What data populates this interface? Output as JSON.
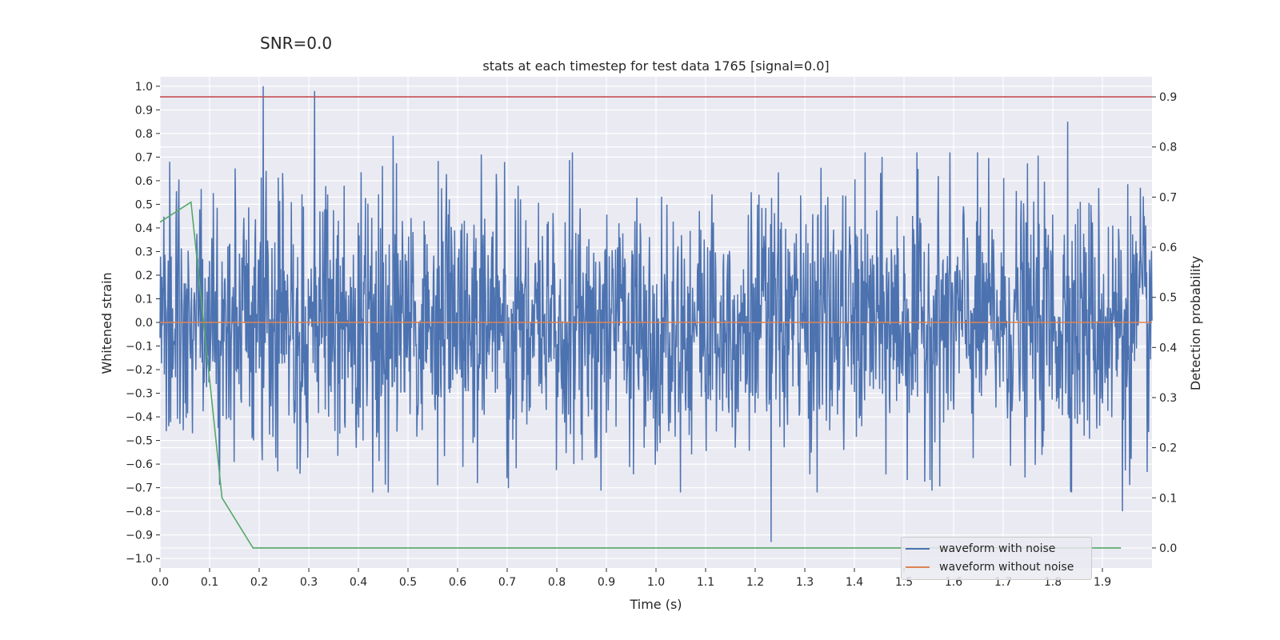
{
  "suptitle": "SNR=0.0",
  "chart_data": {
    "type": "line",
    "title": "stats at each timestep for test data 1765 [signal=0.0]",
    "xlabel": "Time (s)",
    "ylabel": "Whitened strain",
    "y2label": "Detection probability",
    "xlim": [
      0.0,
      2.0
    ],
    "ylim": [
      -1.04,
      1.04
    ],
    "y2lim": [
      -0.04,
      0.94
    ],
    "xticks": [
      "0.0",
      "0.1",
      "0.2",
      "0.3",
      "0.4",
      "0.5",
      "0.6",
      "0.7",
      "0.8",
      "0.9",
      "1.0",
      "1.1",
      "1.2",
      "1.3",
      "1.4",
      "1.5",
      "1.6",
      "1.7",
      "1.8",
      "1.9"
    ],
    "yticks": [
      "1.0",
      "0.9",
      "0.8",
      "0.7",
      "0.6",
      "0.5",
      "0.4",
      "0.3",
      "0.2",
      "0.1",
      "0.0",
      "−0.1",
      "−0.2",
      "−0.3",
      "−0.4",
      "−0.5",
      "−0.6",
      "−0.7",
      "−0.8",
      "−0.9",
      "−1.0"
    ],
    "y2ticks": [
      "0.9",
      "0.8",
      "0.7",
      "0.6",
      "0.5",
      "0.4",
      "0.3",
      "0.2",
      "0.1",
      "0.0"
    ],
    "grid": true,
    "legend_position": "lower-right",
    "series": [
      {
        "name": "waveform with noise",
        "color": "#4c72b0",
        "axis": "left",
        "samples": 2048,
        "amplitude_std": 0.27,
        "peaks": [
          [
            0.208,
            1.0
          ],
          [
            0.312,
            0.98
          ],
          [
            1.232,
            -0.93
          ],
          [
            1.83,
            0.85
          ],
          [
            1.94,
            -0.8
          ],
          [
            0.02,
            0.68
          ],
          [
            0.47,
            0.79
          ]
        ]
      },
      {
        "name": "waveform without noise",
        "color": "#dd8452",
        "axis": "left",
        "x": [
          0.0,
          2.0
        ],
        "y": [
          0.0,
          0.0
        ]
      },
      {
        "name": "",
        "color": "#c44e52",
        "axis": "right",
        "x": [
          0.0,
          2.0
        ],
        "y": [
          0.9,
          0.9
        ]
      },
      {
        "name": "",
        "color": "#55a868",
        "axis": "right",
        "x": [
          0.0,
          0.0625,
          0.125,
          0.1875,
          0.25,
          0.5,
          1.0,
          1.5,
          1.9375
        ],
        "y": [
          0.65,
          0.69,
          0.1,
          0.0,
          0.0,
          0.0,
          0.0,
          0.0,
          0.0
        ]
      }
    ]
  }
}
